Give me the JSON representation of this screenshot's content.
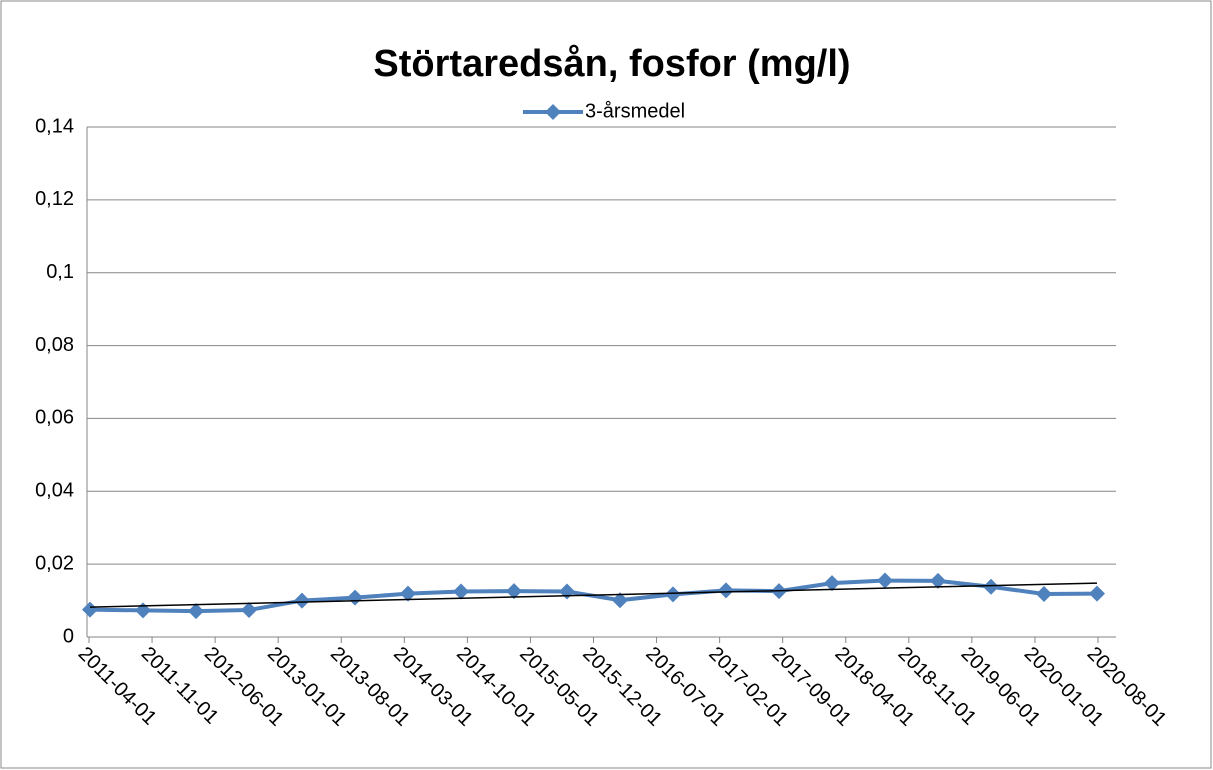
{
  "chart_data": {
    "type": "line",
    "title": "Störtaredsån, fosfor (mg/l)",
    "x_labels": [
      "2011-04-01",
      "2011-11-01",
      "2012-06-01",
      "2013-01-01",
      "2013-08-01",
      "2014-03-01",
      "2014-10-01",
      "2015-05-01",
      "2015-12-01",
      "2016-07-01",
      "2017-02-01",
      "2017-09-01",
      "2018-04-01",
      "2018-11-01",
      "2019-06-01",
      "2020-01-01",
      "2020-08-01"
    ],
    "series": [
      {
        "name": "3-årsmedel",
        "color": "#4f81bd",
        "values": [
          0.0075,
          0.0073,
          0.0071,
          0.0074,
          0.01,
          0.0108,
          0.0119,
          0.0125,
          0.0126,
          0.0125,
          0.0101,
          0.0117,
          0.0128,
          0.0126,
          0.0148,
          0.0155,
          0.0154,
          0.0138,
          0.0118,
          0.0119
        ]
      }
    ],
    "trendline": true,
    "ylim": [
      0,
      0.14
    ],
    "yticks": [
      0,
      {
        "value": 0.02,
        "label": "0,02"
      },
      {
        "value": 0.04,
        "label": "0,04"
      },
      {
        "value": 0.06,
        "label": "0,06"
      },
      {
        "value": 0.08,
        "label": "0,08"
      },
      {
        "value": 0.1,
        "label": "0,1"
      },
      {
        "value": 0.12,
        "label": "0,12"
      },
      {
        "value": 0.14,
        "label": "0,14"
      }
    ],
    "grid": true,
    "legend": "top"
  }
}
